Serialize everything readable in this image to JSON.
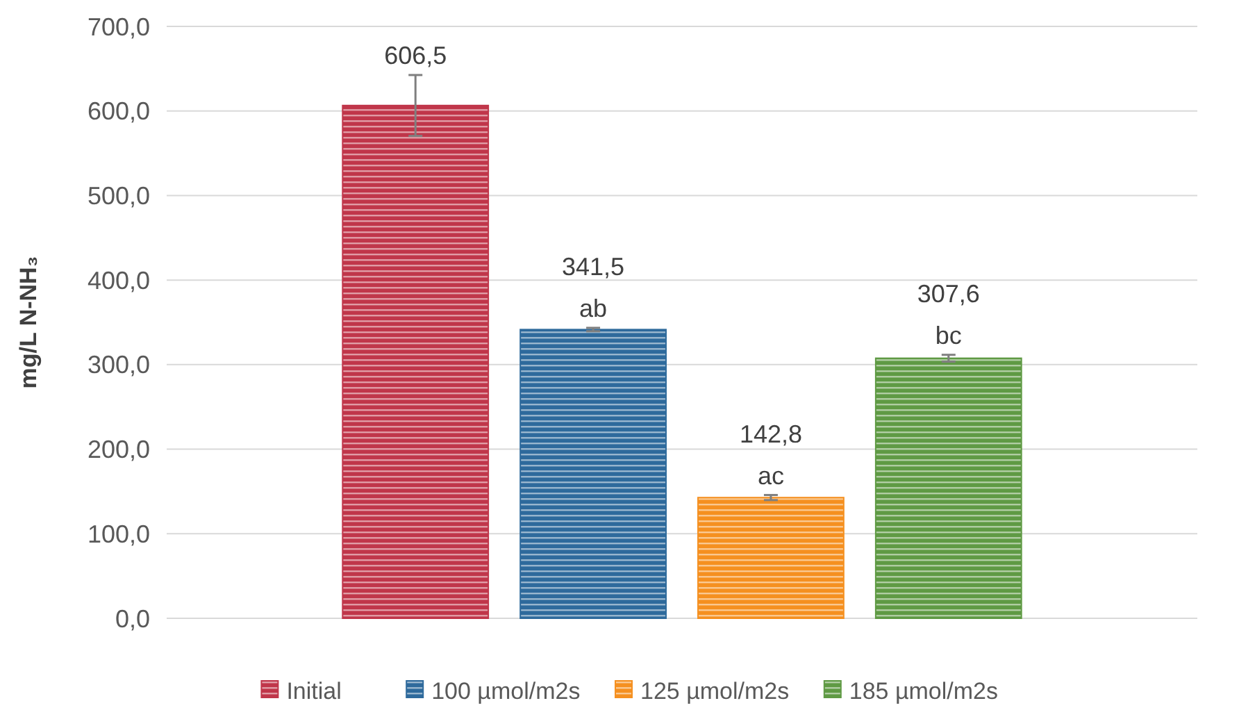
{
  "chart_data": {
    "type": "bar",
    "ylabel": "mg/L N-NH₃",
    "categories": [
      null
    ],
    "series": [
      {
        "name": "Initial",
        "color": "#c0364a",
        "values": [
          606.5
        ],
        "errors": [
          36
        ],
        "value_labels": [
          "606,5"
        ]
      },
      {
        "name": "100 µmol/m2s",
        "color": "#2e6a9c",
        "values": [
          341.5
        ],
        "errors": [
          2
        ],
        "value_labels": [
          "341,5"
        ]
      },
      {
        "name": "125 µmol/m2s",
        "color": "#f59020",
        "values": [
          142.8
        ],
        "errors": [
          3
        ],
        "value_labels": [
          "142,8"
        ]
      },
      {
        "name": "185 µmol/m2s",
        "color": "#5f9a44",
        "values": [
          307.6
        ],
        "errors": [
          4
        ],
        "value_labels": [
          "307,6"
        ]
      }
    ],
    "annotations": [
      {
        "text": "ab",
        "y": 341.5
      },
      {
        "text": "ac",
        "y": 142.8
      },
      {
        "text": "bc",
        "y": 307.6
      }
    ],
    "ylim": [
      0,
      700
    ],
    "yticks": [
      {
        "value": 0,
        "label": "0,0"
      },
      {
        "value": 100,
        "label": "100,0"
      },
      {
        "value": 200,
        "label": "200,0"
      },
      {
        "value": 300,
        "label": "300,0"
      },
      {
        "value": 400,
        "label": "400,0"
      },
      {
        "value": 500,
        "label": "500,0"
      },
      {
        "value": 600,
        "label": "600,0"
      },
      {
        "value": 700,
        "label": "700,0"
      }
    ],
    "grid": "y",
    "legend": "bottom"
  }
}
